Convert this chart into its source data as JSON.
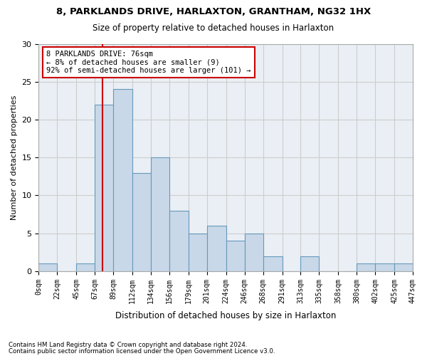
{
  "title1": "8, PARKLANDS DRIVE, HARLAXTON, GRANTHAM, NG32 1HX",
  "title2": "Size of property relative to detached houses in Harlaxton",
  "xlabel": "Distribution of detached houses by size in Harlaxton",
  "ylabel": "Number of detached properties",
  "bin_edges": [
    0,
    22,
    45,
    67,
    89,
    112,
    134,
    156,
    179,
    201,
    224,
    246,
    268,
    291,
    313,
    335,
    358,
    380,
    402,
    425,
    447
  ],
  "bar_heights": [
    1,
    0,
    1,
    22,
    24,
    13,
    15,
    8,
    5,
    6,
    4,
    5,
    2,
    0,
    2,
    0,
    0,
    1,
    1,
    1
  ],
  "bar_facecolor": "#c8d8e8",
  "bar_edgecolor": "#6699bb",
  "property_size": 76,
  "property_line_color": "#cc0000",
  "annotation_text": "8 PARKLANDS DRIVE: 76sqm\n← 8% of detached houses are smaller (9)\n92% of semi-detached houses are larger (101) →",
  "annotation_box_edgecolor": "#cc0000",
  "annotation_box_facecolor": "#ffffff",
  "ylim": [
    0,
    30
  ],
  "yticks": [
    0,
    5,
    10,
    15,
    20,
    25,
    30
  ],
  "tick_labels": [
    "0sqm",
    "22sqm",
    "45sqm",
    "67sqm",
    "89sqm",
    "112sqm",
    "134sqm",
    "156sqm",
    "179sqm",
    "201sqm",
    "224sqm",
    "246sqm",
    "268sqm",
    "291sqm",
    "313sqm",
    "335sqm",
    "358sqm",
    "380sqm",
    "402sqm",
    "425sqm",
    "447sqm"
  ],
  "footer1": "Contains HM Land Registry data © Crown copyright and database right 2024.",
  "footer2": "Contains public sector information licensed under the Open Government Licence v3.0.",
  "bg_color": "#ffffff",
  "plot_bg_color": "#eaeff5",
  "grid_color": "#cccccc"
}
